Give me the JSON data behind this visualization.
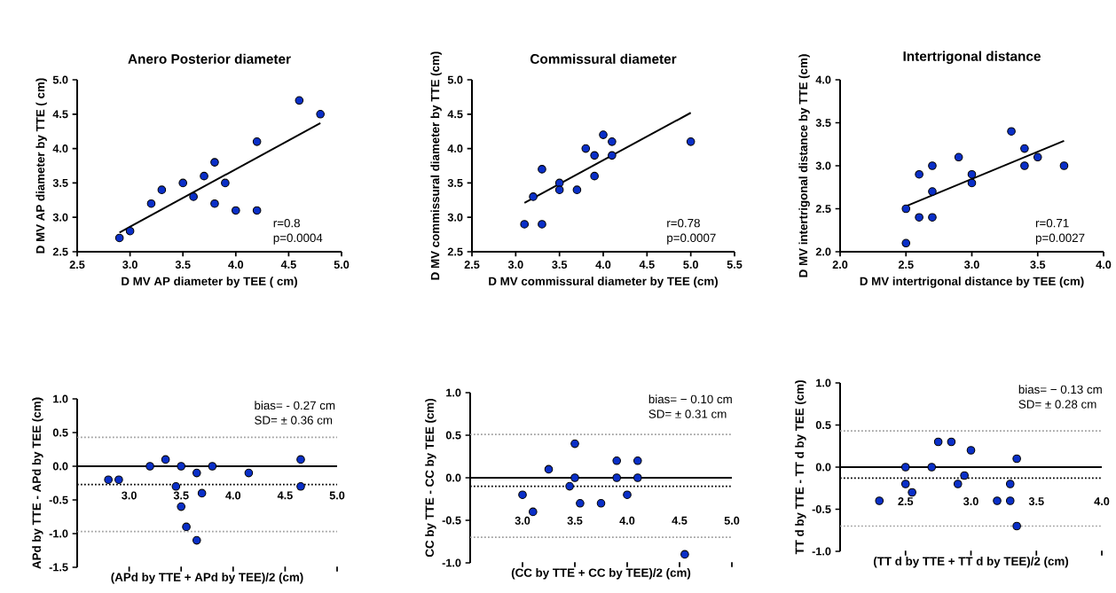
{
  "chart_data": [
    {
      "type": "scatter",
      "title": "Anero Posterior diameter",
      "xlabel": "D MV AP diameter by TEE ( cm)",
      "ylabel": "D MV AP diameter by TTE ( cm)",
      "xlim": [
        2.5,
        5.0
      ],
      "ylim": [
        2.5,
        5.0
      ],
      "xticks": [
        {
          "value": 2.5,
          "label": "2.5"
        },
        {
          "value": 3.0,
          "label": "3.0"
        },
        {
          "value": 3.5,
          "label": "3.5"
        },
        {
          "value": 4.0,
          "label": "4.0"
        },
        {
          "value": 4.5,
          "label": "4.5"
        },
        {
          "value": 5.0,
          "label": "5.0"
        }
      ],
      "yticks": [
        {
          "value": 2.5,
          "label": "2.5"
        },
        {
          "value": 3.0,
          "label": "3.0"
        },
        {
          "value": 3.5,
          "label": "3.5"
        },
        {
          "value": 4.0,
          "label": "4.0"
        },
        {
          "value": 4.5,
          "label": "4.5"
        },
        {
          "value": 5.0,
          "label": "5.0"
        }
      ],
      "series": [
        {
          "color": "#0a2fc8",
          "marker": "circle",
          "x": [
            2.9,
            3.0,
            3.2,
            3.3,
            3.5,
            3.6,
            3.7,
            3.8,
            3.8,
            3.9,
            4.0,
            4.2,
            4.2,
            4.6,
            4.8
          ],
          "values": [
            2.7,
            2.8,
            3.2,
            3.4,
            3.5,
            3.3,
            3.6,
            3.8,
            3.2,
            3.5,
            3.1,
            4.1,
            3.1,
            4.7,
            4.5
          ]
        },
        {
          "type": "line",
          "color": "#000000",
          "x": [
            2.9,
            4.8
          ],
          "values": [
            2.78,
            4.37
          ]
        }
      ],
      "annotations": [
        "r=0.8",
        "p=0.0004"
      ]
    },
    {
      "type": "scatter",
      "title": "Commissural diameter",
      "xlabel": "D MV commissural diameter by TEE (cm)",
      "ylabel": "D MV commissural diameter by TTE (cm)",
      "xlim": [
        2.5,
        5.5
      ],
      "ylim": [
        2.5,
        5.0
      ],
      "xticks": [
        {
          "value": 2.5,
          "label": "2.5"
        },
        {
          "value": 3.0,
          "label": "3.0"
        },
        {
          "value": 3.5,
          "label": "3.5"
        },
        {
          "value": 4.0,
          "label": "4.0"
        },
        {
          "value": 4.5,
          "label": "4.5"
        },
        {
          "value": 5.0,
          "label": "5.0"
        },
        {
          "value": 5.5,
          "label": "5.5"
        }
      ],
      "yticks": [
        {
          "value": 2.5,
          "label": "2.5"
        },
        {
          "value": 3.0,
          "label": "3.0"
        },
        {
          "value": 3.5,
          "label": "3.5"
        },
        {
          "value": 4.0,
          "label": "4.0"
        },
        {
          "value": 4.5,
          "label": "4.5"
        },
        {
          "value": 5.0,
          "label": "5.0"
        }
      ],
      "series": [
        {
          "color": "#0a2fc8",
          "marker": "circle",
          "x": [
            3.1,
            3.2,
            3.3,
            3.3,
            3.5,
            3.5,
            3.7,
            3.8,
            3.9,
            3.9,
            4.0,
            4.1,
            4.1,
            5.0
          ],
          "values": [
            2.9,
            3.3,
            3.7,
            2.9,
            3.5,
            3.4,
            3.4,
            4.0,
            3.9,
            3.6,
            4.2,
            4.1,
            3.9,
            4.1
          ]
        },
        {
          "type": "line",
          "color": "#000000",
          "x": [
            3.1,
            5.0
          ],
          "values": [
            3.21,
            4.52
          ]
        }
      ],
      "annotations": [
        "r=0.78",
        "p=0.0007"
      ]
    },
    {
      "type": "scatter",
      "title": "Intertrigonal distance",
      "xlabel": "D MV intertrigonal distance by TEE (cm)",
      "ylabel": "D MV intertrigonal distance by TTE (cm)",
      "xlim": [
        2.0,
        4.0
      ],
      "ylim": [
        2.0,
        4.0
      ],
      "xticks": [
        {
          "value": 2.0,
          "label": "2.0"
        },
        {
          "value": 2.5,
          "label": "2.5"
        },
        {
          "value": 3.0,
          "label": "3.0"
        },
        {
          "value": 3.5,
          "label": "3.5"
        },
        {
          "value": 4.0,
          "label": "4.0"
        }
      ],
      "yticks": [
        {
          "value": 2.0,
          "label": "2.0"
        },
        {
          "value": 2.5,
          "label": "2.5"
        },
        {
          "value": 3.0,
          "label": "3.0"
        },
        {
          "value": 3.5,
          "label": "3.5"
        },
        {
          "value": 4.0,
          "label": "4.0"
        }
      ],
      "series": [
        {
          "color": "#0a2fc8",
          "marker": "circle",
          "x": [
            2.5,
            2.5,
            2.6,
            2.6,
            2.7,
            2.7,
            2.7,
            2.9,
            3.0,
            3.0,
            3.3,
            3.4,
            3.4,
            3.5,
            3.7
          ],
          "values": [
            2.5,
            2.1,
            2.9,
            2.4,
            3.0,
            2.7,
            2.4,
            3.1,
            2.9,
            2.8,
            3.4,
            3.2,
            3.0,
            3.1,
            3.0
          ]
        },
        {
          "type": "line",
          "color": "#000000",
          "x": [
            2.5,
            3.7
          ],
          "values": [
            2.53,
            3.29
          ]
        }
      ],
      "annotations": [
        "r=0.71",
        "p=0.0027"
      ]
    },
    {
      "type": "scatter",
      "xlabel": "(APd by TTE + APd by TEE)/2 (cm)",
      "ylabel": "APd by TTE - APd by TEE (cm)",
      "marker": "circle",
      "xlim": [
        2.5,
        5.0
      ],
      "ylim": [
        -1.5,
        1.0
      ],
      "xticks": [
        {
          "value": 3.0,
          "label": "3.0"
        },
        {
          "value": 3.5,
          "label": "3.5"
        },
        {
          "value": 4.0,
          "label": "4.0"
        },
        {
          "value": 4.5,
          "label": "4.5"
        },
        {
          "value": 5.0,
          "label": "5.0"
        }
      ],
      "yticks": [
        {
          "value": -1.5,
          "label": "-1.5"
        },
        {
          "value": -1.0,
          "label": "-1.0"
        },
        {
          "value": -0.5,
          "label": "-0.5"
        },
        {
          "value": 0.0,
          "label": "0.0"
        },
        {
          "value": 0.5,
          "label": "0.5"
        },
        {
          "value": 1.0,
          "label": "1.0"
        }
      ],
      "series": [
        {
          "color": "#0a2fc8",
          "x": [
            2.8,
            2.9,
            3.2,
            3.35,
            3.45,
            3.5,
            3.5,
            3.55,
            3.65,
            3.65,
            3.7,
            3.8,
            4.15,
            4.65,
            4.65
          ],
          "values": [
            -0.2,
            -0.2,
            0.0,
            0.1,
            -0.3,
            0.0,
            -0.6,
            -0.9,
            -0.1,
            -1.1,
            -0.4,
            0.0,
            -0.1,
            0.1,
            -0.3
          ]
        }
      ],
      "ref_lines": [
        {
          "axis": "y",
          "value": 0.43,
          "color": "#a0a0a0",
          "line_style": "dotted"
        },
        {
          "axis": "y",
          "value": -0.27,
          "color": "#000000",
          "line_style": "dotted"
        },
        {
          "axis": "y",
          "value": -0.97,
          "color": "#a0a0a0",
          "line_style": "dotted"
        }
      ],
      "annotations": [
        "bias= - 0.27 cm",
        "SD= ± 0.36 cm"
      ]
    },
    {
      "type": "scatter",
      "xlabel": "(CC by TTE + CC by TEE)/2 (cm)",
      "ylabel": "CC by TTE - CC by TEE (cm)",
      "marker": "circle",
      "xlim": [
        2.5,
        5.0
      ],
      "ylim": [
        -1.0,
        1.0
      ],
      "xticks": [
        {
          "value": 3.0,
          "label": "3.0"
        },
        {
          "value": 3.5,
          "label": "3.5"
        },
        {
          "value": 4.0,
          "label": "4.0"
        },
        {
          "value": 4.5,
          "label": "4.5"
        },
        {
          "value": 5.0,
          "label": "5.0"
        }
      ],
      "yticks": [
        {
          "value": -1.0,
          "label": "-1.0"
        },
        {
          "value": -0.5,
          "label": "-0.5"
        },
        {
          "value": 0.0,
          "label": "0.0"
        },
        {
          "value": 0.5,
          "label": "0.5"
        },
        {
          "value": 1.0,
          "label": "1.0"
        }
      ],
      "series": [
        {
          "color": "#0a2fc8",
          "x": [
            3.0,
            3.1,
            3.25,
            3.45,
            3.5,
            3.5,
            3.55,
            3.75,
            3.9,
            3.9,
            4.0,
            4.1,
            4.1,
            4.55
          ],
          "values": [
            -0.2,
            -0.4,
            0.1,
            -0.1,
            0.4,
            0.0,
            -0.3,
            -0.3,
            0.2,
            0.0,
            -0.2,
            0.2,
            0.0,
            -0.9
          ]
        }
      ],
      "ref_lines": [
        {
          "axis": "y",
          "value": 0.51,
          "color": "#a0a0a0",
          "line_style": "dotted"
        },
        {
          "axis": "y",
          "value": -0.1,
          "color": "#000000",
          "line_style": "dotted"
        },
        {
          "axis": "y",
          "value": -0.7,
          "color": "#a0a0a0",
          "line_style": "dotted"
        }
      ],
      "annotations": [
        "bias= − 0.10 cm",
        "SD= ± 0.31 cm"
      ]
    },
    {
      "type": "scatter",
      "xlabel": "(TT d by TTE + TT d by TEE)/2 (cm)",
      "ylabel": "TT d by TTE - TT d by TEE (cm)",
      "marker": "circle",
      "xlim": [
        2.0,
        4.0
      ],
      "ylim": [
        -1.0,
        1.0
      ],
      "xticks": [
        {
          "value": 2.5,
          "label": "2.5"
        },
        {
          "value": 3.0,
          "label": "3.0"
        },
        {
          "value": 3.5,
          "label": "3.5"
        },
        {
          "value": 4.0,
          "label": "4.0"
        }
      ],
      "yticks": [
        {
          "value": -1.0,
          "label": "-1.0"
        },
        {
          "value": -0.5,
          "label": "-0.5"
        },
        {
          "value": 0.0,
          "label": "0.0"
        },
        {
          "value": 0.5,
          "label": "0.5"
        },
        {
          "value": 1.0,
          "label": "1.0"
        }
      ],
      "series": [
        {
          "color": "#0a2fc8",
          "x": [
            2.3,
            2.5,
            2.5,
            2.55,
            2.7,
            2.75,
            2.85,
            2.9,
            2.95,
            3.0,
            3.2,
            3.3,
            3.3,
            3.35,
            3.35
          ],
          "values": [
            -0.4,
            0.0,
            -0.2,
            -0.3,
            0.0,
            0.3,
            0.3,
            -0.2,
            -0.1,
            0.2,
            -0.4,
            -0.4,
            -0.2,
            0.1,
            -0.7
          ]
        }
      ],
      "ref_lines": [
        {
          "axis": "y",
          "value": 0.43,
          "color": "#a0a0a0",
          "line_style": "dotted"
        },
        {
          "axis": "y",
          "value": -0.13,
          "color": "#000000",
          "line_style": "dotted"
        },
        {
          "axis": "y",
          "value": -0.7,
          "color": "#a0a0a0",
          "line_style": "dotted"
        }
      ],
      "annotations": [
        "bias= − 0.13 cm",
        "SD= ± 0.28 cm"
      ]
    }
  ]
}
